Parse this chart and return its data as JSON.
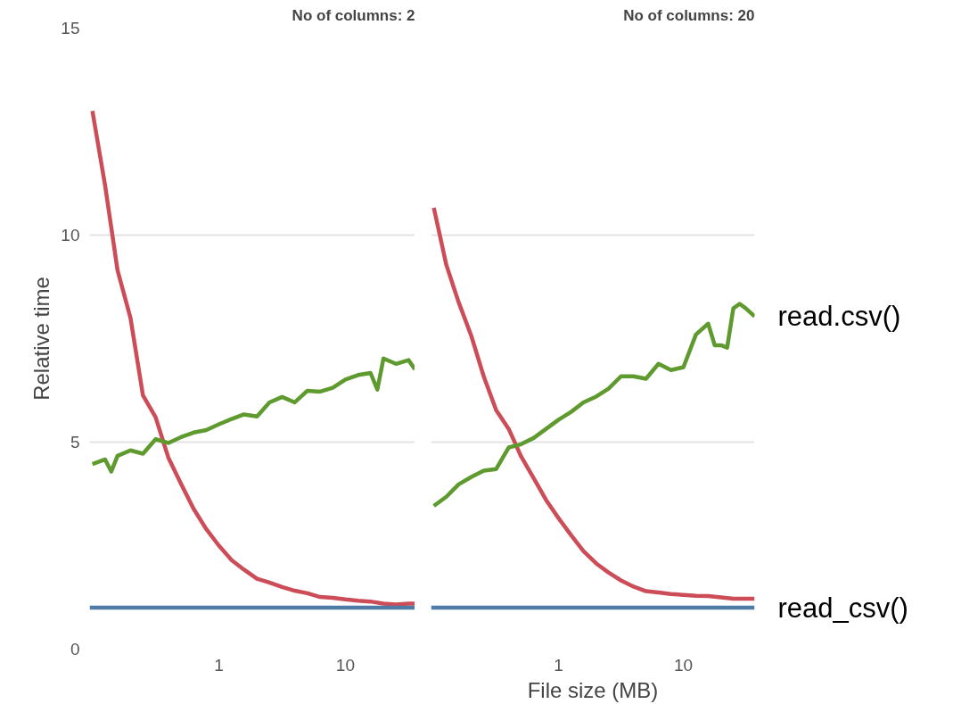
{
  "chart_data": [
    {
      "type": "line",
      "title": "No of columns: 2",
      "ylabel": "Relative time",
      "log": "x",
      "grid": "y",
      "xlim": [
        0.095,
        35.5
      ],
      "ylim": [
        0,
        15
      ],
      "xticks": [
        1,
        10
      ],
      "yticks": [
        0,
        5,
        10,
        15
      ],
      "series": [
        {
          "color": "#cc4c57",
          "x": [
            0.1,
            0.126,
            0.158,
            0.2,
            0.251,
            0.316,
            0.398,
            0.501,
            0.631,
            0.794,
            1,
            1.26,
            1.58,
            2,
            2.51,
            3.16,
            3.98,
            5.01,
            6.31,
            7.94,
            10,
            12.6,
            15.8,
            20,
            25.1,
            31.6,
            35.5
          ],
          "values": [
            13.0,
            11.2,
            9.15,
            8.0,
            6.13,
            5.6,
            4.63,
            4.0,
            3.39,
            2.9,
            2.5,
            2.15,
            1.92,
            1.7,
            1.61,
            1.5,
            1.41,
            1.35,
            1.26,
            1.24,
            1.2,
            1.17,
            1.15,
            1.1,
            1.08,
            1.1,
            1.1
          ]
        },
        {
          "color": "#5e9a2d",
          "x": [
            0.1,
            0.126,
            0.141,
            0.158,
            0.2,
            0.251,
            0.316,
            0.398,
            0.501,
            0.631,
            0.794,
            1,
            1.26,
            1.58,
            2,
            2.51,
            3.16,
            3.98,
            5.01,
            6.31,
            7.94,
            10,
            12.6,
            15.8,
            17.9,
            20,
            25.1,
            31.6,
            35.5
          ],
          "values": [
            4.47,
            4.58,
            4.29,
            4.67,
            4.8,
            4.72,
            5.07,
            4.98,
            5.12,
            5.23,
            5.29,
            5.43,
            5.56,
            5.67,
            5.62,
            5.96,
            6.09,
            5.96,
            6.24,
            6.22,
            6.31,
            6.51,
            6.62,
            6.67,
            6.27,
            7.02,
            6.89,
            6.98,
            6.76
          ]
        },
        {
          "color": "#4f7ca6",
          "x": [
            0.095,
            35.5
          ],
          "values": [
            1,
            1
          ]
        }
      ]
    },
    {
      "type": "line",
      "title": "No of columns: 20",
      "xlabel": "File size (MB)",
      "log": "x",
      "grid": "y",
      "tick_labels": "x",
      "xlim": [
        0.095,
        37.2
      ],
      "ylim": [
        0,
        15
      ],
      "xticks": [
        1,
        10
      ],
      "yticks": [
        0,
        5,
        10,
        15
      ],
      "series": [
        {
          "color": "#cc4c57",
          "x": [
            0.1,
            0.126,
            0.158,
            0.2,
            0.251,
            0.316,
            0.398,
            0.501,
            0.631,
            0.794,
            1,
            1.26,
            1.58,
            2,
            2.51,
            3.16,
            3.98,
            5.01,
            6.31,
            7.94,
            10,
            12.6,
            15.8,
            20,
            25.1,
            31.6,
            37.2
          ],
          "values": [
            10.66,
            9.28,
            8.38,
            7.56,
            6.59,
            5.77,
            5.32,
            4.65,
            4.13,
            3.6,
            3.16,
            2.75,
            2.37,
            2.07,
            1.85,
            1.66,
            1.51,
            1.4,
            1.37,
            1.33,
            1.31,
            1.29,
            1.28,
            1.25,
            1.22,
            1.22,
            1.22
          ]
        },
        {
          "name": "read.csv()",
          "color": "#5e9a2d",
          "x": [
            0.1,
            0.126,
            0.158,
            0.2,
            0.251,
            0.316,
            0.398,
            0.501,
            0.631,
            0.794,
            1,
            1.26,
            1.58,
            2,
            2.51,
            3.16,
            3.98,
            5.01,
            6.31,
            7.94,
            10,
            12.6,
            15.8,
            17.8,
            20,
            22.4,
            25.1,
            28.2,
            31.6,
            37.2
          ],
          "values": [
            3.46,
            3.68,
            3.98,
            4.16,
            4.31,
            4.35,
            4.87,
            4.95,
            5.1,
            5.32,
            5.54,
            5.73,
            5.96,
            6.1,
            6.29,
            6.59,
            6.59,
            6.53,
            6.89,
            6.74,
            6.81,
            7.6,
            7.86,
            7.34,
            7.34,
            7.28,
            8.23,
            8.34,
            8.23,
            8.04
          ]
        },
        {
          "name": "read_csv()",
          "color": "#4f7ca6",
          "x": [
            0.095,
            37.2
          ],
          "values": [
            1,
            1
          ]
        }
      ]
    }
  ]
}
